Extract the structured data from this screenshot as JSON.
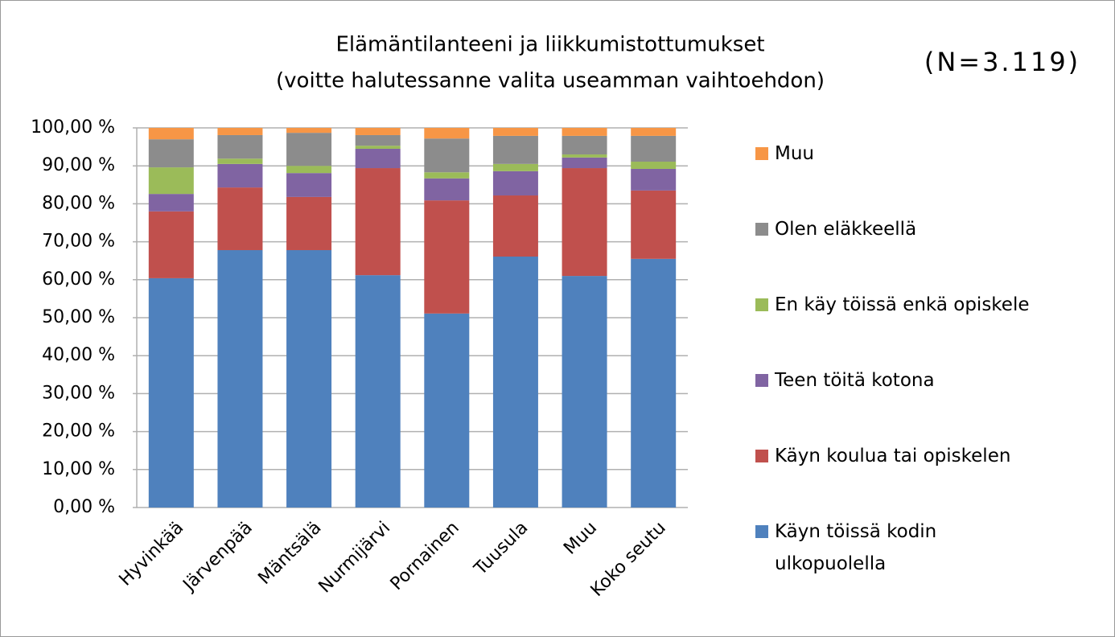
{
  "chart_data": {
    "type": "stacked_bar",
    "title": "Elämäntilanteeni ja liikkumistottumukset",
    "subtitle": "(voitte halutessanne valita useamman vaihtoehdon)",
    "annotation": "(N=3.119)",
    "categories": [
      "Hyvinkää",
      "Järvenpää",
      "Mäntsälä",
      "Nurmijärvi",
      "Pornainen",
      "Tuusula",
      "Muu",
      "Koko seutu"
    ],
    "series": [
      {
        "name": "Käyn töissä kodin ulkopuolella",
        "color": "#4f81bd",
        "values": [
          60.4,
          67.8,
          67.8,
          61.2,
          51.1,
          66.1,
          61.0,
          65.5
        ]
      },
      {
        "name": "Käyn koulua tai opiskelen",
        "color": "#c0504d",
        "values": [
          17.6,
          16.5,
          14.0,
          28.2,
          29.8,
          16.1,
          28.4,
          18.0
        ]
      },
      {
        "name": "Teen töitä kotona",
        "color": "#8064a2",
        "values": [
          4.6,
          6.2,
          6.3,
          5.1,
          5.8,
          6.4,
          2.8,
          5.7
        ]
      },
      {
        "name": "En käy töissä enkä opiskele",
        "color": "#9bbb59",
        "values": [
          7.0,
          1.4,
          1.9,
          0.8,
          1.6,
          1.9,
          0.8,
          1.9
        ]
      },
      {
        "name": "Olen eläkkeellä",
        "color": "#8c8c8c",
        "values": [
          7.4,
          6.2,
          8.7,
          2.8,
          8.9,
          7.4,
          4.9,
          6.8
        ]
      },
      {
        "name": "Muu",
        "color": "#f79646",
        "values": [
          3.0,
          1.9,
          1.3,
          1.9,
          2.8,
          2.1,
          2.1,
          2.1
        ]
      }
    ],
    "ylim": [
      0,
      100
    ],
    "yticks": [
      {
        "value": 0,
        "label": "0,00 %"
      },
      {
        "value": 10,
        "label": "10,00 %"
      },
      {
        "value": 20,
        "label": "20,00 %"
      },
      {
        "value": 30,
        "label": "30,00 %"
      },
      {
        "value": 40,
        "label": "40,00 %"
      },
      {
        "value": 50,
        "label": "50,00 %"
      },
      {
        "value": 60,
        "label": "60,00 %"
      },
      {
        "value": 70,
        "label": "70,00 %"
      },
      {
        "value": 80,
        "label": "80,00 %"
      },
      {
        "value": 90,
        "label": "90,00 %"
      },
      {
        "value": 100,
        "label": "100,00 %"
      }
    ],
    "grid": true,
    "legend": "right"
  }
}
